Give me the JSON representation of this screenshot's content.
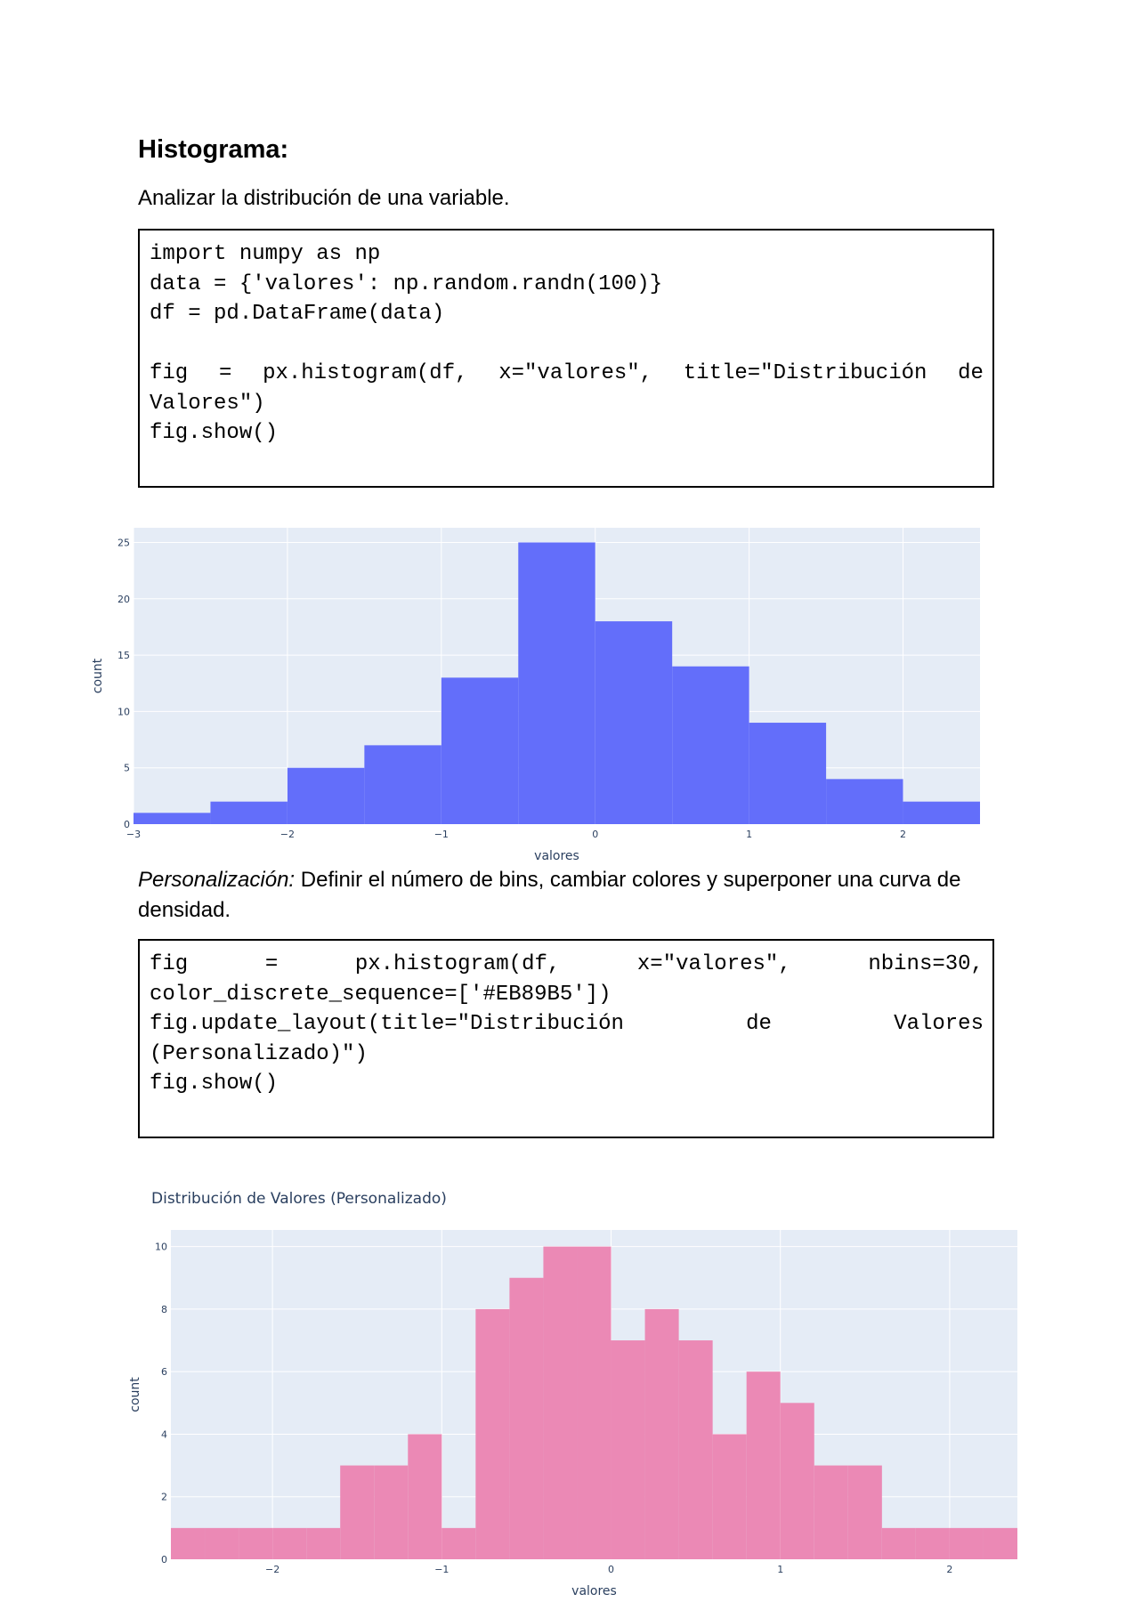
{
  "section": {
    "title": "Histograma:",
    "intro": "Analizar la distribución de una variable.",
    "code1": [
      "import numpy as np",
      "data = {'valores': np.random.randn(100)}",
      "df = pd.DataFrame(data)",
      "",
      [
        "fig",
        "=",
        "px.histogram(df,",
        "x=\"valores\",",
        "title=\"Distribución",
        "de"
      ],
      "Valores\")",
      "fig.show()"
    ],
    "custom_label": "Personalización:",
    "custom_text": " Definir el número de bins, cambiar colores y superponer una curva de densidad.",
    "code2": [
      [
        "fig",
        "=",
        "px.histogram(df,",
        "x=\"valores\",",
        "nbins=30,"
      ],
      "color_discrete_sequence=['#EB89B5'])",
      [
        "fig.update_layout(title=\"Distribución",
        "de",
        "Valores"
      ],
      "(Personalizado)\")",
      "fig.show()"
    ]
  },
  "chart_data": [
    {
      "type": "bar",
      "title": "",
      "xlabel": "valores",
      "ylabel": "count",
      "color": "#636EFA",
      "bin_edges": [
        -3,
        -2.5,
        -2,
        -1.5,
        -1,
        -0.5,
        0,
        0.5,
        1,
        1.5,
        2,
        2.5
      ],
      "values": [
        1,
        2,
        5,
        7,
        13,
        25,
        18,
        14,
        9,
        4,
        2
      ],
      "xticks": [
        -3,
        -2,
        -1,
        0,
        1,
        2
      ],
      "xtick_labels": [
        "−3",
        "−2",
        "−1",
        "0",
        "1",
        "2"
      ],
      "yticks": [
        0,
        5,
        10,
        15,
        20,
        25
      ],
      "xlim": [
        -3,
        2.5
      ],
      "ylim": [
        0,
        26.3
      ],
      "grid": true
    },
    {
      "type": "bar",
      "title": "Distribución de Valores (Personalizado)",
      "xlabel": "valores",
      "ylabel": "count",
      "color": "#EB89B5",
      "bin_edges": [
        -2.6,
        -2.4,
        -2.2,
        -2.0,
        -1.8,
        -1.6,
        -1.4,
        -1.2,
        -1.0,
        -0.8,
        -0.6,
        -0.4,
        -0.2,
        0.0,
        0.2,
        0.4,
        0.6,
        0.8,
        1.0,
        1.2,
        1.4,
        1.6,
        1.8,
        2.0,
        2.2,
        2.4
      ],
      "values": [
        1,
        1,
        1,
        1,
        1,
        3,
        3,
        4,
        1,
        8,
        9,
        10,
        10,
        7,
        8,
        7,
        4,
        6,
        5,
        3,
        3,
        1,
        1,
        1,
        1
      ],
      "xticks": [
        -2,
        -1,
        0,
        1,
        2
      ],
      "xtick_labels": [
        "−2",
        "−1",
        "0",
        "1",
        "2"
      ],
      "yticks": [
        0,
        2,
        4,
        6,
        8,
        10
      ],
      "xlim": [
        -2.6,
        2.4
      ],
      "ylim": [
        0,
        10.53
      ],
      "grid": true
    }
  ]
}
